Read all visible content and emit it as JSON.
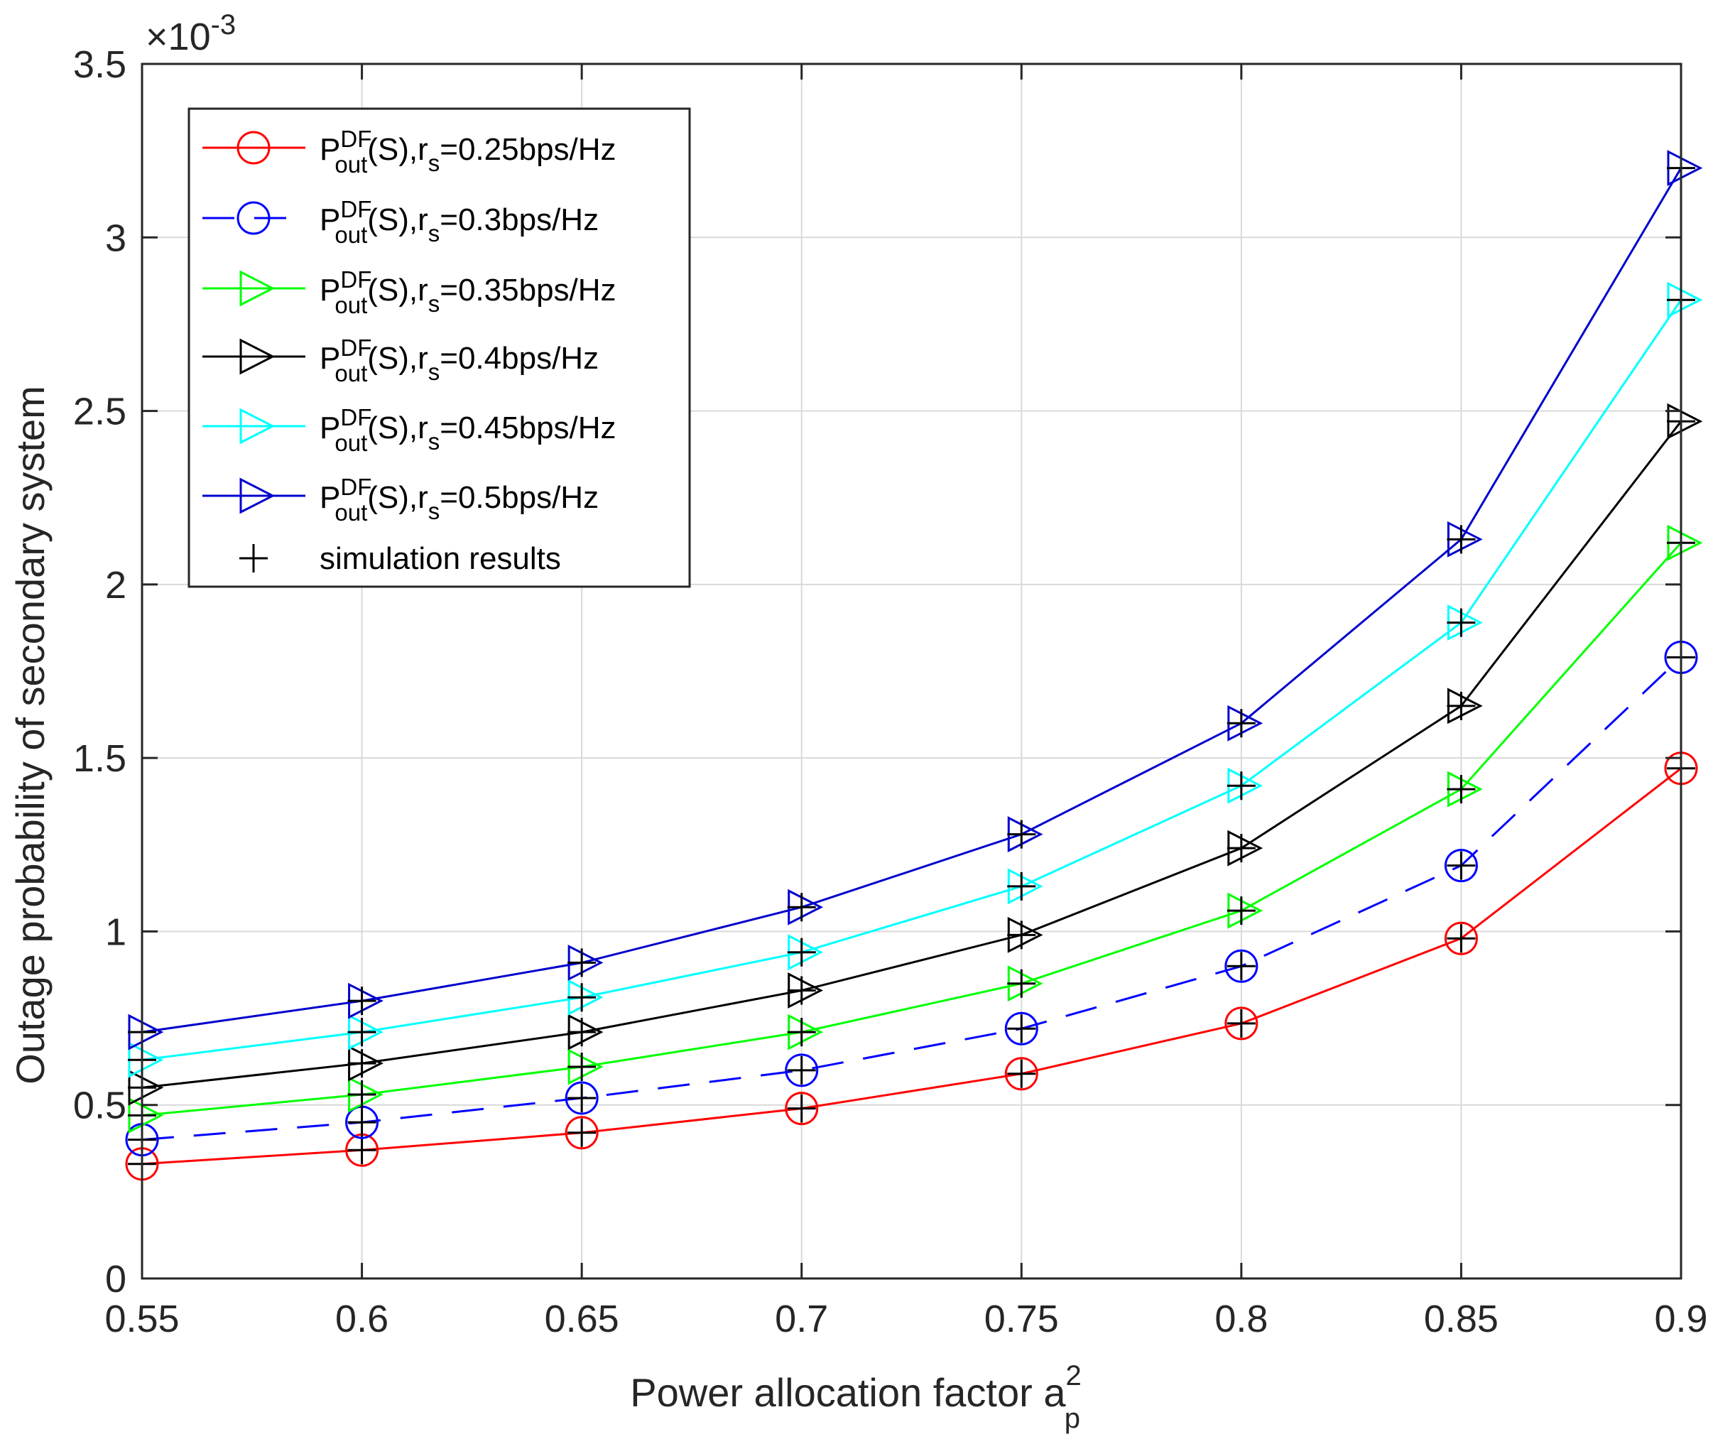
{
  "colors": {
    "red": "#ff0000",
    "blue": "#0000ff",
    "green": "#00ff00",
    "black": "#000000",
    "cyan": "#00ffff",
    "navy": "#0000cd",
    "grid": "#d9d9d9",
    "axis": "#262626"
  },
  "chart_data": {
    "type": "line",
    "xlabel": "Power allocation factor a",
    "xlabel_sup": "2",
    "xlabel_sub": "p",
    "ylabel": "Outage probability of secondary system",
    "y_exponent_label": "×10",
    "y_exponent": "-3",
    "xlim": [
      0.55,
      0.9
    ],
    "ylim": [
      0,
      3.5
    ],
    "grid": true,
    "legend_position": "top-left",
    "x": [
      0.55,
      0.6,
      0.65,
      0.7,
      0.75,
      0.8,
      0.85,
      0.9
    ],
    "x_tick_labels": [
      "0.55",
      "0.6",
      "0.65",
      "0.7",
      "0.75",
      "0.8",
      "0.85",
      "0.9"
    ],
    "y_ticks": [
      0,
      0.5,
      1,
      1.5,
      2,
      2.5,
      3,
      3.5
    ],
    "y_tick_labels": [
      "0",
      "0.5",
      "1",
      "1.5",
      "2",
      "2.5",
      "3",
      "3.5"
    ],
    "series": [
      {
        "name": "P_out^DF(S), r_s=0.25bps/Hz",
        "label_main": "P",
        "label_sup": "DF",
        "label_sub": "out",
        "label_mid": "(S),r",
        "label_sub2": "s",
        "label_tail": "=0.25bps/Hz",
        "color": "#ff0000",
        "marker": "circle",
        "dash": "solid",
        "values": [
          0.33,
          0.37,
          0.42,
          0.49,
          0.59,
          0.735,
          0.98,
          1.47
        ]
      },
      {
        "name": "P_out^DF(S), r_s=0.3bps/Hz",
        "label_main": "P",
        "label_sup": "DF",
        "label_sub": "out",
        "label_mid": "(S),r",
        "label_sub2": "s",
        "label_tail": "=0.3bps/Hz",
        "color": "#0000ff",
        "marker": "circle",
        "dash": "dashed",
        "values": [
          0.4,
          0.45,
          0.52,
          0.6,
          0.72,
          0.9,
          1.19,
          1.79
        ]
      },
      {
        "name": "P_out^DF(S), r_s=0.35bps/Hz",
        "label_main": "P",
        "label_sup": "DF",
        "label_sub": "out",
        "label_mid": "(S),r",
        "label_sub2": "s",
        "label_tail": "=0.35bps/Hz",
        "color": "#00ff00",
        "marker": "triangle-right",
        "dash": "solid",
        "values": [
          0.47,
          0.53,
          0.61,
          0.71,
          0.85,
          1.06,
          1.41,
          2.12
        ]
      },
      {
        "name": "P_out^DF(S), r_s=0.4bps/Hz",
        "label_main": "P",
        "label_sup": "DF",
        "label_sub": "out",
        "label_mid": "(S),r",
        "label_sub2": "s",
        "label_tail": "=0.4bps/Hz",
        "color": "#000000",
        "marker": "triangle-right",
        "dash": "solid",
        "values": [
          0.55,
          0.62,
          0.71,
          0.83,
          0.99,
          1.24,
          1.65,
          2.47
        ]
      },
      {
        "name": "P_out^DF(S), r_s=0.45bps/Hz",
        "label_main": "P",
        "label_sup": "DF",
        "label_sub": "out",
        "label_mid": "(S),r",
        "label_sub2": "s",
        "label_tail": "=0.45bps/Hz",
        "color": "#00ffff",
        "marker": "triangle-right",
        "dash": "solid",
        "values": [
          0.63,
          0.71,
          0.81,
          0.94,
          1.13,
          1.42,
          1.89,
          2.82
        ]
      },
      {
        "name": "P_out^DF(S), r_s=0.5bps/Hz",
        "label_main": "P",
        "label_sup": "DF",
        "label_sub": "out",
        "label_mid": "(S),r",
        "label_sub2": "s",
        "label_tail": "=0.5bps/Hz",
        "color": "#0000cd",
        "marker": "triangle-right",
        "dash": "solid",
        "values": [
          0.71,
          0.8,
          0.91,
          1.07,
          1.28,
          1.6,
          2.13,
          3.2
        ]
      }
    ],
    "simulation": {
      "name": "simulation results",
      "color": "#000000",
      "marker": "plus"
    }
  }
}
